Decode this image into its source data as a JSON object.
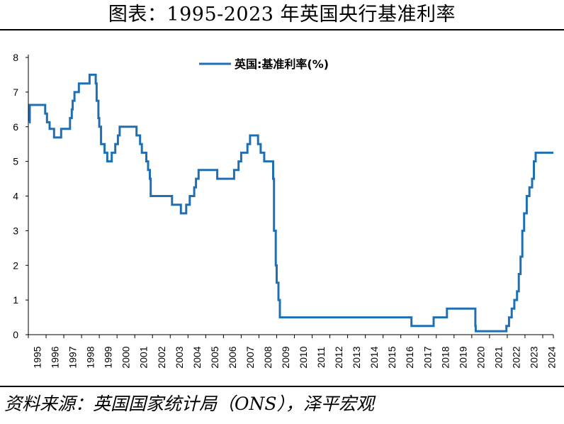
{
  "title": "图表：1995-2023 年英国央行基准利率",
  "source": "资料来源：英国国家统计局（ONS），泽平宏观",
  "chart_data": {
    "type": "line",
    "title": "图表：1995-2023 年英国央行基准利率",
    "xlabel": "",
    "ylabel": "",
    "xlim": [
      1995,
      2024.6
    ],
    "ylim": [
      0,
      8
    ],
    "yticks": [
      0,
      1,
      2,
      3,
      4,
      5,
      6,
      7,
      8
    ],
    "xticks": [
      "1995",
      "1996",
      "1997",
      "1998",
      "1999",
      "2000",
      "2001",
      "2002",
      "2003",
      "2004",
      "2005",
      "2006",
      "2007",
      "2008",
      "2009",
      "2010",
      "2011",
      "2012",
      "2013",
      "2014",
      "2015",
      "2016",
      "2017",
      "2018",
      "2019",
      "2020",
      "2021",
      "2022",
      "2023",
      "2024"
    ],
    "grid": false,
    "legend_position": "top-center",
    "color": "#1f6fb5",
    "series": [
      {
        "name": "英国:基准利率(%)",
        "step": true,
        "points": [
          [
            1995.0,
            6.13
          ],
          [
            1995.08,
            6.63
          ],
          [
            1995.95,
            6.38
          ],
          [
            1996.05,
            6.13
          ],
          [
            1996.2,
            5.94
          ],
          [
            1996.45,
            5.69
          ],
          [
            1996.85,
            5.94
          ],
          [
            1997.35,
            6.25
          ],
          [
            1997.45,
            6.5
          ],
          [
            1997.5,
            6.75
          ],
          [
            1997.6,
            7.0
          ],
          [
            1997.85,
            7.25
          ],
          [
            1998.45,
            7.5
          ],
          [
            1998.8,
            7.25
          ],
          [
            1998.85,
            6.75
          ],
          [
            1998.95,
            6.25
          ],
          [
            1999.0,
            6.0
          ],
          [
            1999.1,
            5.5
          ],
          [
            1999.3,
            5.25
          ],
          [
            1999.45,
            5.0
          ],
          [
            1999.7,
            5.25
          ],
          [
            1999.9,
            5.5
          ],
          [
            2000.05,
            5.75
          ],
          [
            2000.15,
            6.0
          ],
          [
            2001.1,
            5.75
          ],
          [
            2001.3,
            5.5
          ],
          [
            2001.4,
            5.25
          ],
          [
            2001.65,
            5.0
          ],
          [
            2001.75,
            4.75
          ],
          [
            2001.85,
            4.5
          ],
          [
            2001.9,
            4.0
          ],
          [
            2003.1,
            3.75
          ],
          [
            2003.6,
            3.5
          ],
          [
            2003.9,
            3.75
          ],
          [
            2004.1,
            4.0
          ],
          [
            2004.35,
            4.25
          ],
          [
            2004.45,
            4.5
          ],
          [
            2004.6,
            4.75
          ],
          [
            2005.65,
            4.5
          ],
          [
            2006.6,
            4.75
          ],
          [
            2006.85,
            5.0
          ],
          [
            2007.0,
            5.25
          ],
          [
            2007.35,
            5.5
          ],
          [
            2007.5,
            5.75
          ],
          [
            2007.95,
            5.5
          ],
          [
            2008.1,
            5.25
          ],
          [
            2008.3,
            5.0
          ],
          [
            2008.8,
            4.5
          ],
          [
            2008.85,
            3.0
          ],
          [
            2008.95,
            2.0
          ],
          [
            2009.0,
            1.5
          ],
          [
            2009.1,
            1.0
          ],
          [
            2009.18,
            0.5
          ],
          [
            2016.6,
            0.25
          ],
          [
            2017.85,
            0.5
          ],
          [
            2018.6,
            0.75
          ],
          [
            2020.2,
            0.25
          ],
          [
            2020.22,
            0.1
          ],
          [
            2021.95,
            0.25
          ],
          [
            2022.1,
            0.5
          ],
          [
            2022.25,
            0.75
          ],
          [
            2022.4,
            1.0
          ],
          [
            2022.55,
            1.25
          ],
          [
            2022.65,
            1.75
          ],
          [
            2022.75,
            2.25
          ],
          [
            2022.85,
            3.0
          ],
          [
            2022.95,
            3.5
          ],
          [
            2023.1,
            4.0
          ],
          [
            2023.25,
            4.25
          ],
          [
            2023.4,
            4.5
          ],
          [
            2023.5,
            5.0
          ],
          [
            2023.6,
            5.25
          ],
          [
            2024.6,
            5.25
          ]
        ]
      }
    ]
  }
}
